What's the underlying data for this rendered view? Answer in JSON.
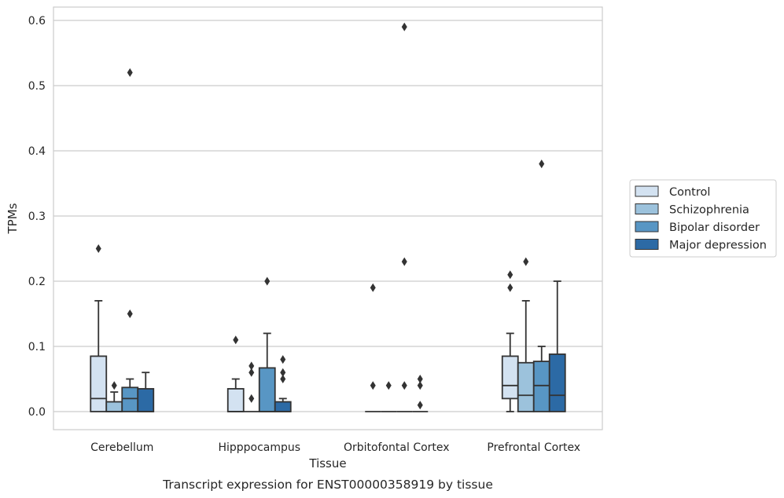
{
  "caption": "Transcript expression for ENST00000358919 by tissue",
  "chart_data": {
    "type": "box",
    "xlabel": "Tissue",
    "ylabel": "TPMs",
    "ylim": [
      -0.03,
      0.62
    ],
    "yticks": [
      "0.0",
      "0.1",
      "0.2",
      "0.3",
      "0.4",
      "0.5",
      "0.6"
    ],
    "grid": "horizontal",
    "legend_position": "right",
    "categories": [
      "Cerebellum",
      "Hipppocampus",
      "Orbitofontal Cortex",
      "Prefrontal Cortex"
    ],
    "series": [
      {
        "name": "Control",
        "color": "#d3e2f1",
        "boxes": [
          {
            "q1": 0,
            "median": 0.02,
            "q3": 0.085,
            "whisker_low": 0,
            "whisker_high": 0.17,
            "outliers": [
              0.25
            ]
          },
          {
            "q1": 0,
            "median": 0,
            "q3": 0.035,
            "whisker_low": 0,
            "whisker_high": 0.05,
            "outliers": [
              0.11
            ]
          },
          {
            "q1": 0,
            "median": 0,
            "q3": 0,
            "whisker_low": 0,
            "whisker_high": 0,
            "outliers": [
              0.19,
              0.04
            ]
          },
          {
            "q1": 0.02,
            "median": 0.04,
            "q3": 0.085,
            "whisker_low": 0,
            "whisker_high": 0.12,
            "outliers": [
              0.21,
              0.19
            ]
          }
        ]
      },
      {
        "name": "Schizophrenia",
        "color": "#9cc2dc",
        "boxes": [
          {
            "q1": 0,
            "median": 0,
            "q3": 0.015,
            "whisker_low": 0,
            "whisker_high": 0.03,
            "outliers": [
              0.04
            ]
          },
          {
            "q1": 0,
            "median": 0,
            "q3": 0,
            "whisker_low": 0,
            "whisker_high": 0,
            "outliers": [
              0.07,
              0.06,
              0.02
            ]
          },
          {
            "q1": 0,
            "median": 0,
            "q3": 0,
            "whisker_low": 0,
            "whisker_high": 0,
            "outliers": [
              0.04
            ]
          },
          {
            "q1": 0,
            "median": 0.025,
            "q3": 0.075,
            "whisker_low": 0,
            "whisker_high": 0.17,
            "outliers": [
              0.23
            ]
          }
        ]
      },
      {
        "name": "Bipolar disorder",
        "color": "#5896c4",
        "boxes": [
          {
            "q1": 0,
            "median": 0.02,
            "q3": 0.037,
            "whisker_low": 0,
            "whisker_high": 0.05,
            "outliers": [
              0.52,
              0.15
            ]
          },
          {
            "q1": 0,
            "median": 0,
            "q3": 0.067,
            "whisker_low": 0,
            "whisker_high": 0.12,
            "outliers": [
              0.2
            ]
          },
          {
            "q1": 0,
            "median": 0,
            "q3": 0,
            "whisker_low": 0,
            "whisker_high": 0,
            "outliers": [
              0.59,
              0.23,
              0.04
            ]
          },
          {
            "q1": 0,
            "median": 0.04,
            "q3": 0.077,
            "whisker_low": 0,
            "whisker_high": 0.1,
            "outliers": [
              0.38
            ]
          }
        ]
      },
      {
        "name": "Major depression",
        "color": "#2c6aa5",
        "boxes": [
          {
            "q1": 0,
            "median": 0,
            "q3": 0.035,
            "whisker_low": 0,
            "whisker_high": 0.06,
            "outliers": []
          },
          {
            "q1": 0,
            "median": 0,
            "q3": 0.015,
            "whisker_low": 0,
            "whisker_high": 0.02,
            "outliers": [
              0.08,
              0.06,
              0.05
            ]
          },
          {
            "q1": 0,
            "median": 0,
            "q3": 0,
            "whisker_low": 0,
            "whisker_high": 0,
            "outliers": [
              0.05,
              0.04,
              0.01
            ]
          },
          {
            "q1": 0,
            "median": 0.025,
            "q3": 0.088,
            "whisker_low": 0,
            "whisker_high": 0.2,
            "outliers": []
          }
        ]
      }
    ]
  }
}
